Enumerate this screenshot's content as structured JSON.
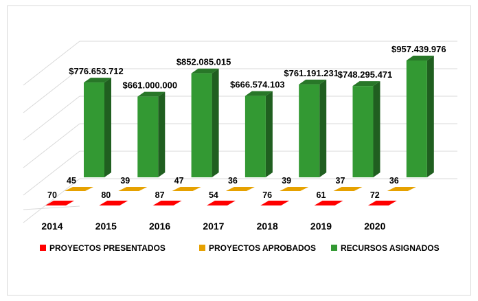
{
  "chart_data": {
    "type": "bar",
    "title": "",
    "xlabel": "",
    "ylabel": "",
    "years_axis": [
      "2014",
      "2015",
      "2016",
      "2017",
      "2018",
      "2019",
      "2020"
    ],
    "legend_position": "bottom",
    "grid": true,
    "series": [
      {
        "name": "PROYECTOS PRESENTADOS",
        "color": "#ff0000",
        "values": [
          70,
          80,
          87,
          54,
          76,
          61,
          72
        ],
        "labels": [
          "70",
          "80",
          "87",
          "54",
          "76",
          "61",
          "72"
        ]
      },
      {
        "name": "PROYECTOS APROBADOS",
        "color": "#e6a100",
        "values": [
          45,
          39,
          47,
          36,
          39,
          37,
          36
        ],
        "labels": [
          "45",
          "39",
          "47",
          "36",
          "39",
          "37",
          "36"
        ]
      },
      {
        "name": "RECURSOS ASIGNADOS",
        "color": "#339933",
        "values": [
          776653712,
          661000000,
          852085015,
          666574103,
          761191231,
          748295471,
          957439976
        ],
        "labels": [
          "$776.653.712",
          "$661.000.000",
          "$852.085.015",
          "$666.574.103",
          "$761.191.231",
          "$748.295.471",
          "$957.439.976"
        ]
      }
    ]
  }
}
